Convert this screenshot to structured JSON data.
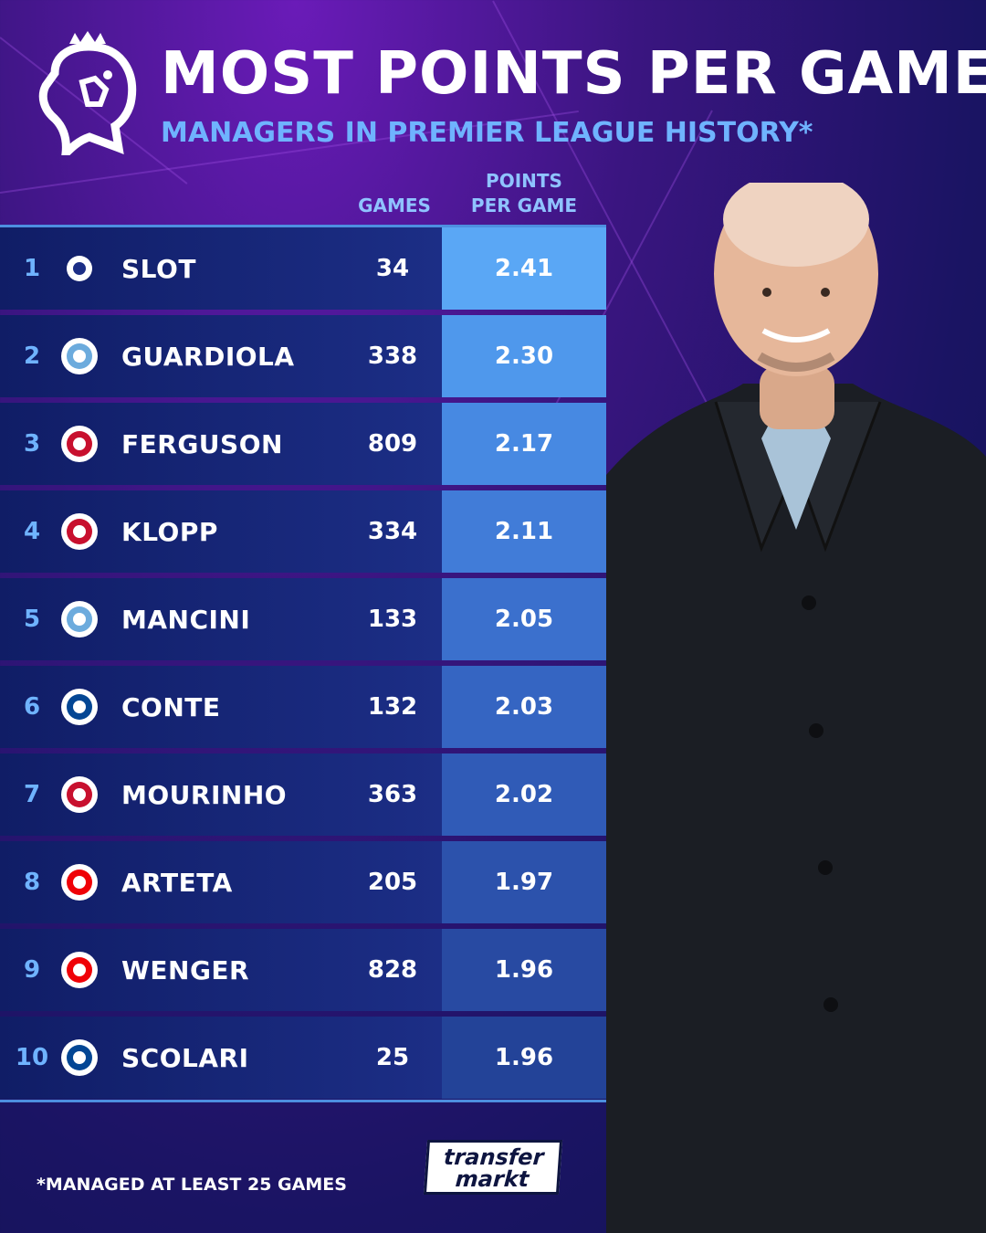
{
  "header": {
    "title": "MOST POINTS PER GAME",
    "subtitle": "MANAGERS IN PREMIER LEAGUE HISTORY*"
  },
  "columns": {
    "games": "GAMES",
    "ppg_line1": "POINTS",
    "ppg_line2": "PER GAME"
  },
  "rows": [
    {
      "rank": "1",
      "badge": "liverpool-lfc-icon",
      "name": "SLOT",
      "games": "34",
      "ppg": "2.41",
      "ppg_color": "#5aa7f5"
    },
    {
      "rank": "2",
      "badge": "man-city-icon",
      "name": "GUARDIOLA",
      "games": "338",
      "ppg": "2.30",
      "ppg_color": "#4f98ec"
    },
    {
      "rank": "3",
      "badge": "man-united-icon",
      "name": "FERGUSON",
      "games": "809",
      "ppg": "2.17",
      "ppg_color": "#4789e2"
    },
    {
      "rank": "4",
      "badge": "liverpool-crest-icon",
      "name": "KLOPP",
      "games": "334",
      "ppg": "2.11",
      "ppg_color": "#417cd8"
    },
    {
      "rank": "5",
      "badge": "man-city-old-icon",
      "name": "MANCINI",
      "games": "133",
      "ppg": "2.05",
      "ppg_color": "#3b70cd"
    },
    {
      "rank": "6",
      "badge": "tottenham-chelsea-icon",
      "name": "CONTE",
      "games": "132",
      "ppg": "2.03",
      "ppg_color": "#3565c2"
    },
    {
      "rank": "7",
      "badge": "tottenham-united-chelsea-icon",
      "name": "MOURINHO",
      "games": "363",
      "ppg": "2.02",
      "ppg_color": "#305bb7"
    },
    {
      "rank": "8",
      "badge": "arsenal-icon",
      "name": "ARTETA",
      "games": "205",
      "ppg": "1.97",
      "ppg_color": "#2c52ac"
    },
    {
      "rank": "9",
      "badge": "arsenal-icon",
      "name": "WENGER",
      "games": "828",
      "ppg": "1.96",
      "ppg_color": "#284aa2"
    },
    {
      "rank": "10",
      "badge": "chelsea-icon",
      "name": "SCOLARI",
      "games": "25",
      "ppg": "1.96",
      "ppg_color": "#234398"
    }
  ],
  "footnote": "*MANAGED AT LEAST 25 GAMES",
  "brand": {
    "line1": "transfer",
    "line2": "markt"
  },
  "colors": {
    "accent": "#6fb3ff",
    "rank": "#6fb3ff"
  }
}
